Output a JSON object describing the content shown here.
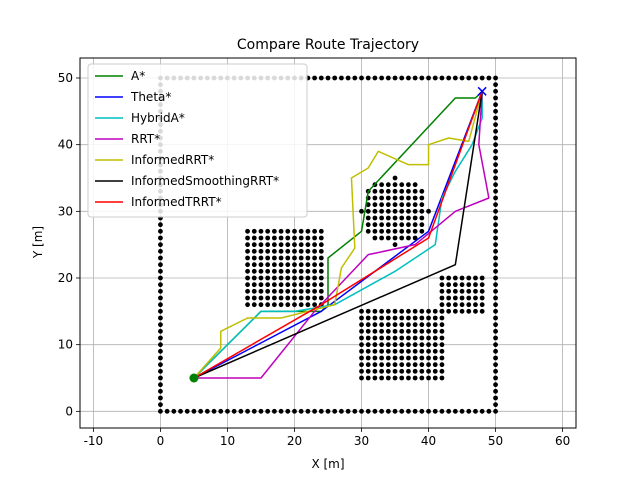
{
  "chart_data": {
    "type": "line",
    "title": "Compare Route Trajectory",
    "xlabel": "X [m]",
    "ylabel": "Y [m]",
    "xlim": [
      -12,
      62
    ],
    "ylim": [
      -2.5,
      53
    ],
    "xticks": [
      -10,
      0,
      10,
      20,
      30,
      40,
      50,
      60
    ],
    "yticks": [
      0,
      10,
      20,
      30,
      40,
      50
    ],
    "grid": true,
    "legend_position": "top-left",
    "start": {
      "x": 5,
      "y": 5,
      "color": "#008000"
    },
    "goal": {
      "x": 48,
      "y": 48,
      "color": "#0000ff"
    },
    "obstacles": {
      "boundary": {
        "x0": 0,
        "x1": 50,
        "y0": 0,
        "y1": 50,
        "step": 1
      },
      "blocks": [
        {
          "x0": 13,
          "x1": 24,
          "y0": 16,
          "y1": 27,
          "step": 1
        },
        {
          "x0": 30,
          "x1": 42,
          "y0": 5,
          "y1": 15,
          "step": 1
        },
        {
          "x0": 42,
          "x1": 48,
          "y0": 15,
          "y1": 20,
          "step": 1
        }
      ],
      "circle": {
        "cx": 35,
        "cy": 30,
        "r": 5
      }
    },
    "series": [
      {
        "name": "A*",
        "color": "#008000",
        "x": [
          5,
          15,
          24,
          25,
          25,
          30,
          31,
          44,
          47,
          48
        ],
        "y": [
          5,
          15,
          15,
          16,
          23,
          27,
          33,
          47,
          47,
          48
        ]
      },
      {
        "name": "Theta*",
        "color": "#0000ff",
        "x": [
          5,
          24,
          40,
          48
        ],
        "y": [
          5,
          15,
          27,
          48
        ]
      },
      {
        "name": "HybridA*",
        "color": "#00bfbf",
        "x": [
          5,
          15,
          20,
          26,
          35,
          38,
          41,
          42,
          44,
          46.5,
          48,
          48
        ],
        "y": [
          5,
          15,
          15,
          16,
          21,
          23,
          25,
          32,
          36,
          40,
          44,
          48
        ]
      },
      {
        "name": "RRT*",
        "color": "#bf00bf",
        "x": [
          5,
          15,
          23,
          31,
          38,
          44,
          49,
          47.5,
          48
        ],
        "y": [
          5,
          5,
          15,
          23.5,
          25,
          30,
          32,
          40,
          48
        ]
      },
      {
        "name": "InformedRRT*",
        "color": "#bfbf00",
        "x": [
          5,
          9,
          9,
          13,
          18,
          26,
          27,
          29,
          28.5,
          31,
          32.5,
          37,
          40,
          40,
          43,
          46,
          48
        ],
        "y": [
          5,
          9.5,
          12,
          14,
          14,
          16,
          21.5,
          24.5,
          35,
          36.5,
          39,
          37,
          37,
          40,
          41,
          40.5,
          48
        ]
      },
      {
        "name": "InformedSmoothingRRT*",
        "color": "#000000",
        "x": [
          5,
          44,
          48
        ],
        "y": [
          5,
          22,
          48
        ]
      },
      {
        "name": "InformedTRRT*",
        "color": "#ff0000",
        "x": [
          5,
          24,
          40,
          48
        ],
        "y": [
          5,
          16,
          26,
          48
        ]
      }
    ]
  }
}
